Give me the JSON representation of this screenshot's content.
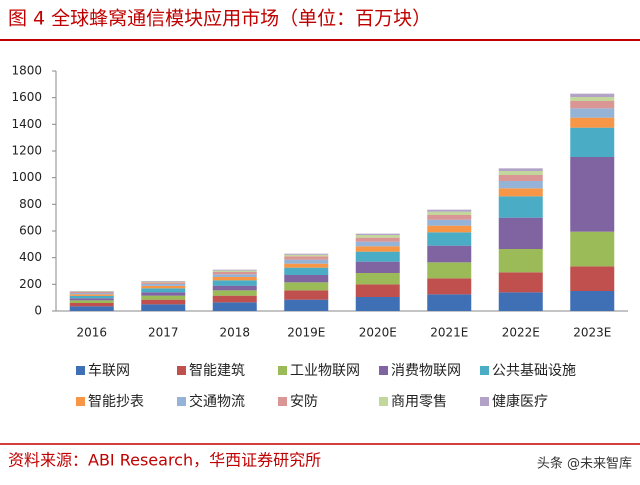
{
  "chart_data": {
    "type": "stacked_bar",
    "title": "图 4 全球蜂窝通信模块应用市场（单位：百万块）",
    "source": "资料来源：ABI Research，华西证券研究所",
    "watermark": "头条 @未来智库",
    "categories": [
      "2016",
      "2017",
      "2018",
      "2019E",
      "2020E",
      "2021E",
      "2022E",
      "2023E"
    ],
    "ylim": [
      0,
      1800
    ],
    "yticks": [
      0,
      200,
      400,
      600,
      800,
      1000,
      1200,
      1400,
      1600,
      1800
    ],
    "grid": false,
    "series": [
      {
        "name": "车联网",
        "color": "#3f6fb5",
        "values": [
          35,
          50,
          65,
          85,
          105,
          125,
          140,
          150
        ]
      },
      {
        "name": "智能建筑",
        "color": "#c0504d",
        "values": [
          25,
          35,
          50,
          70,
          95,
          120,
          150,
          185
        ]
      },
      {
        "name": "工业物联网",
        "color": "#9bbb59",
        "values": [
          20,
          30,
          40,
          60,
          85,
          120,
          175,
          260
        ]
      },
      {
        "name": "消费物联网",
        "color": "#8064a2",
        "values": [
          15,
          25,
          35,
          55,
          85,
          125,
          235,
          560
        ]
      },
      {
        "name": "公共基础设施",
        "color": "#4bacc6",
        "values": [
          18,
          30,
          40,
          55,
          75,
          100,
          160,
          220
        ]
      },
      {
        "name": "智能抄表",
        "color": "#f79646",
        "values": [
          12,
          18,
          25,
          30,
          40,
          50,
          60,
          75
        ]
      },
      {
        "name": "交通物流",
        "color": "#95b3d7",
        "values": [
          10,
          15,
          20,
          30,
          35,
          45,
          55,
          70
        ]
      },
      {
        "name": "安防",
        "color": "#d99694",
        "values": [
          8,
          12,
          18,
          25,
          30,
          35,
          45,
          55
        ]
      },
      {
        "name": "商用零售",
        "color": "#c3d69b",
        "values": [
          4,
          6,
          10,
          12,
          20,
          25,
          30,
          30
        ]
      },
      {
        "name": "健康医疗",
        "color": "#b3a2c7",
        "values": [
          3,
          4,
          7,
          8,
          10,
          15,
          20,
          25
        ]
      }
    ]
  }
}
